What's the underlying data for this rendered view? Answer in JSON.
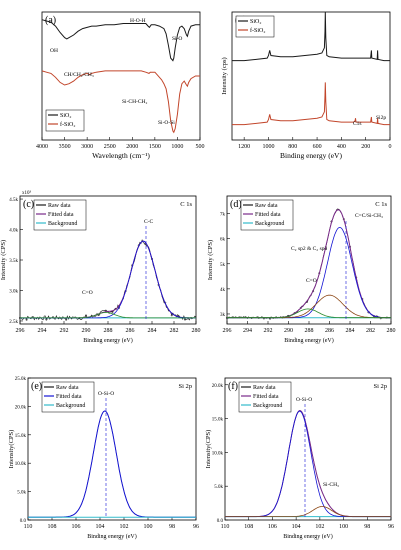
{
  "colors": {
    "black": "#1a1a1a",
    "red": "#c2462b",
    "purple": "#7a2a8a",
    "blue": "#1515d4",
    "green": "#2a8a2a",
    "cyan": "#33bbcc",
    "brown": "#8b4513",
    "axis": "#000000"
  },
  "chart_data": [
    {
      "id": "a",
      "type": "line",
      "panel_label": "(a)",
      "xlabel": "Wavelength (cm⁻¹)",
      "ylabel": "",
      "xlim": [
        4000,
        500
      ],
      "xticks": [
        4000,
        3500,
        3000,
        2500,
        2000,
        1500,
        1000,
        500
      ],
      "show_y_ticks": false,
      "ylim": [
        0,
        1
      ],
      "legend": {
        "position": "bottom-left",
        "entries": [
          "SiO₂",
          "f-SiO₂"
        ]
      },
      "annotations": [
        "OH",
        "H-O-H",
        "Si-O",
        "CH/CH₂/CH₃",
        "Si-CH-CH₂",
        "Si-O-Si"
      ],
      "series": [
        {
          "name": "SiO₂",
          "color": "black",
          "x": [
            4000,
            3900,
            3800,
            3700,
            3600,
            3500,
            3450,
            3400,
            3300,
            3200,
            3100,
            3000,
            2900,
            2800,
            2600,
            2400,
            2200,
            2000,
            1800,
            1700,
            1650,
            1620,
            1580,
            1500,
            1400,
            1300,
            1250,
            1200,
            1150,
            1100,
            1080,
            1050,
            1000,
            950,
            900,
            850,
            800,
            780,
            750,
            700,
            600,
            500
          ],
          "y": [
            0.94,
            0.93,
            0.92,
            0.89,
            0.84,
            0.8,
            0.79,
            0.8,
            0.82,
            0.85,
            0.87,
            0.88,
            0.89,
            0.89,
            0.9,
            0.9,
            0.91,
            0.91,
            0.91,
            0.91,
            0.89,
            0.88,
            0.9,
            0.9,
            0.89,
            0.87,
            0.83,
            0.74,
            0.64,
            0.62,
            0.64,
            0.72,
            0.82,
            0.88,
            0.89,
            0.87,
            0.82,
            0.81,
            0.85,
            0.89,
            0.9,
            0.9
          ]
        },
        {
          "name": "f-SiO₂",
          "color": "red",
          "x": [
            4000,
            3900,
            3800,
            3700,
            3600,
            3500,
            3400,
            3300,
            3200,
            3100,
            3000,
            2950,
            2900,
            2800,
            2600,
            2400,
            2200,
            2000,
            1800,
            1700,
            1630,
            1600,
            1500,
            1450,
            1400,
            1350,
            1300,
            1250,
            1200,
            1150,
            1100,
            1080,
            1050,
            1000,
            950,
            900,
            850,
            800,
            780,
            750,
            700,
            600,
            500
          ],
          "y": [
            0.54,
            0.53,
            0.52,
            0.49,
            0.45,
            0.43,
            0.44,
            0.46,
            0.49,
            0.51,
            0.52,
            0.51,
            0.52,
            0.53,
            0.54,
            0.54,
            0.54,
            0.54,
            0.54,
            0.53,
            0.52,
            0.53,
            0.53,
            0.51,
            0.49,
            0.47,
            0.44,
            0.4,
            0.3,
            0.15,
            0.07,
            0.06,
            0.09,
            0.2,
            0.36,
            0.44,
            0.46,
            0.43,
            0.42,
            0.45,
            0.48,
            0.5,
            0.5
          ]
        }
      ]
    },
    {
      "id": "b",
      "type": "line",
      "panel_label": "(b)",
      "xlabel": "Binding energy (eV)",
      "ylabel": "Intensity (cps)",
      "xlim": [
        1300,
        0
      ],
      "xticks": [
        1200,
        1000,
        800,
        600,
        400,
        200,
        0
      ],
      "show_y_ticks": false,
      "ylim": [
        0,
        1
      ],
      "legend": {
        "position": "top-left",
        "entries": [
          "SiO₂",
          "f-SiO₂"
        ]
      },
      "annotations": [
        "C1s",
        "Si2p"
      ],
      "series": [
        {
          "name": "SiO₂",
          "color": "black",
          "x": [
            1300,
            1200,
            1100,
            1010,
            1000,
            990,
            980,
            900,
            800,
            700,
            600,
            560,
            540,
            535,
            532,
            528,
            520,
            500,
            400,
            300,
            250,
            200,
            160,
            153,
            150,
            105,
            102,
            99,
            50,
            0
          ],
          "y": [
            0.62,
            0.62,
            0.63,
            0.64,
            0.66,
            0.7,
            0.66,
            0.65,
            0.65,
            0.66,
            0.67,
            0.68,
            0.72,
            0.85,
            1.0,
            0.8,
            0.66,
            0.65,
            0.64,
            0.64,
            0.64,
            0.64,
            0.64,
            0.7,
            0.64,
            0.63,
            0.7,
            0.63,
            0.62,
            0.62
          ]
        },
        {
          "name": "f-SiO₂",
          "color": "red",
          "x": [
            1300,
            1200,
            1100,
            1010,
            1000,
            990,
            980,
            900,
            800,
            700,
            600,
            560,
            540,
            535,
            532,
            528,
            520,
            500,
            400,
            300,
            287,
            284,
            280,
            250,
            200,
            160,
            153,
            150,
            105,
            102,
            99,
            50,
            0
          ],
          "y": [
            0.12,
            0.12,
            0.13,
            0.14,
            0.16,
            0.2,
            0.16,
            0.15,
            0.15,
            0.16,
            0.17,
            0.18,
            0.22,
            0.35,
            0.45,
            0.3,
            0.16,
            0.15,
            0.14,
            0.14,
            0.15,
            0.17,
            0.14,
            0.14,
            0.14,
            0.14,
            0.18,
            0.14,
            0.13,
            0.17,
            0.13,
            0.12,
            0.12
          ]
        }
      ]
    },
    {
      "id": "c",
      "type": "line",
      "panel_label": "(c)",
      "corner_label": "C 1s",
      "xlabel": "Binding energy (eV)",
      "ylabel": "Intensity (CPS)",
      "ylabel_multiplier": "x10³",
      "xlim": [
        296,
        280
      ],
      "xticks": [
        296,
        294,
        292,
        290,
        288,
        286,
        284,
        282,
        280
      ],
      "ylim": [
        2.45,
        4.55
      ],
      "yticks": [
        2.5,
        3.0,
        3.5,
        4.0,
        4.5
      ],
      "ytick_labels": [
        "2.5k",
        "3.0k",
        "3.5k",
        "4.0k",
        "4.5k"
      ],
      "legend": {
        "position": "top-left",
        "entries": [
          "Raw data",
          "Fitted data",
          "Background"
        ]
      },
      "annotations": [
        "C-C",
        "C=O"
      ],
      "series": [
        {
          "name": "Raw data",
          "color": "black",
          "role": "raw",
          "noise": 0.035,
          "peaks": [
            [
              284.8,
              1.26,
              1.1
            ],
            [
              288.2,
              0.09,
              0.8
            ]
          ],
          "baseline": 2.55
        },
        {
          "name": "Fitted data",
          "color": "purple",
          "role": "fit",
          "peaks": [
            [
              284.8,
              1.26,
              1.1
            ],
            [
              288.2,
              0.09,
              0.8
            ]
          ],
          "baseline": 2.55
        },
        {
          "name": "Background",
          "color": "cyan",
          "role": "bg",
          "baseline": 2.55
        },
        {
          "name": "C-C",
          "color": "blue",
          "role": "comp",
          "peaks": [
            [
              284.8,
              1.26,
              1.1
            ]
          ],
          "baseline": 2.55
        },
        {
          "name": "C=O",
          "color": "green",
          "role": "comp",
          "peaks": [
            [
              288.2,
              0.09,
              0.8
            ]
          ],
          "baseline": 2.55
        }
      ]
    },
    {
      "id": "d",
      "type": "line",
      "panel_label": "(d)",
      "corner_label": "C 1s",
      "xlabel": "Binding energy (eV)",
      "ylabel": "Intensity (CPS)",
      "xlim": [
        296,
        280
      ],
      "xticks": [
        296,
        294,
        292,
        290,
        288,
        286,
        284,
        282,
        280
      ],
      "ylim": [
        2.6,
        7.7
      ],
      "yticks": [
        3,
        4,
        5,
        6,
        7
      ],
      "ytick_labels": [
        "3k",
        "4k",
        "5k",
        "6k",
        "7k"
      ],
      "legend": {
        "position": "top-left",
        "entries": [
          "Raw data",
          "Fitted data",
          "Background"
        ]
      },
      "annotations": [
        "C=C/Si-CH₃",
        "C₂ sp2 & C₂ sp3",
        "C=O"
      ],
      "series": [
        {
          "name": "Raw data",
          "color": "black",
          "role": "raw",
          "noise": 0.04,
          "peaks": [
            [
              285.0,
              3.6,
              1.2
            ],
            [
              286.0,
              0.9,
              1.3
            ],
            [
              288.1,
              0.35,
              1.0
            ]
          ],
          "baseline": 2.85
        },
        {
          "name": "Fitted data",
          "color": "purple",
          "role": "fit",
          "peaks": [
            [
              285.0,
              3.6,
              1.2
            ],
            [
              286.0,
              0.9,
              1.3
            ],
            [
              288.1,
              0.35,
              1.0
            ]
          ],
          "baseline": 2.85
        },
        {
          "name": "Background",
          "color": "cyan",
          "role": "bg",
          "baseline": 2.85
        },
        {
          "name": "C=C/Si-CH₃",
          "color": "blue",
          "role": "comp",
          "peaks": [
            [
              285.0,
              3.6,
              1.2
            ]
          ],
          "baseline": 2.85
        },
        {
          "name": "C₂ sp2 & C₂ sp3",
          "color": "brown",
          "role": "comp",
          "peaks": [
            [
              286.0,
              0.9,
              1.3
            ]
          ],
          "baseline": 2.85
        },
        {
          "name": "C=O",
          "color": "green",
          "role": "comp",
          "peaks": [
            [
              288.1,
              0.35,
              1.0
            ]
          ],
          "baseline": 2.85
        }
      ]
    },
    {
      "id": "e",
      "type": "line",
      "panel_label": "(e)",
      "corner_label": "Si 2p",
      "xlabel": "Binding energy (eV)",
      "ylabel": "Intensity(CPS)",
      "xlim": [
        110,
        96
      ],
      "xticks": [
        110,
        108,
        106,
        104,
        102,
        100,
        98,
        96
      ],
      "ylim": [
        0,
        25000
      ],
      "yticks": [
        0,
        5000,
        10000,
        15000,
        20000,
        25000
      ],
      "ytick_labels": [
        "0.0",
        "5.0k",
        "10.0k",
        "15.0k",
        "20.0k",
        "25.0k"
      ],
      "legend": {
        "position": "top-left",
        "entries": [
          "Raw data",
          "Fitted data",
          "Background"
        ]
      },
      "annotations": [
        "O-Si-O"
      ],
      "series": [
        {
          "name": "Raw data",
          "color": "black",
          "role": "raw",
          "noise": 0,
          "peaks": [
            [
              103.6,
              18700,
              0.95
            ]
          ],
          "baseline": 500
        },
        {
          "name": "Fitted data",
          "color": "blue",
          "role": "fit",
          "peaks": [
            [
              103.6,
              18700,
              0.95
            ]
          ],
          "baseline": 500
        },
        {
          "name": "Background",
          "color": "cyan",
          "role": "bg",
          "baseline": 500
        }
      ]
    },
    {
      "id": "f",
      "type": "line",
      "panel_label": "(f)",
      "corner_label": "Si 2p",
      "xlabel": "Binding energy (eV)",
      "ylabel": "Intensity(CPS)",
      "xlim": [
        110,
        96
      ],
      "xticks": [
        110,
        108,
        106,
        104,
        102,
        100,
        98,
        96
      ],
      "ylim": [
        0,
        21000
      ],
      "yticks": [
        0,
        5000,
        10000,
        15000,
        20000
      ],
      "ytick_labels": [
        "0.0",
        "5.0k",
        "10.0k",
        "15.0k",
        "20.0k"
      ],
      "legend": {
        "position": "top-left",
        "entries": [
          "Raw data",
          "Fitted data",
          "Background"
        ]
      },
      "annotations": [
        "O-Si-O",
        "Si-CH₃"
      ],
      "series": [
        {
          "name": "Raw data",
          "color": "black",
          "role": "raw",
          "noise": 0,
          "peaks": [
            [
              103.7,
              15600,
              0.95
            ],
            [
              101.8,
              1500,
              0.8
            ]
          ],
          "baseline": 500
        },
        {
          "name": "Fitted data",
          "color": "purple",
          "role": "fit",
          "peaks": [
            [
              103.7,
              15600,
              0.95
            ],
            [
              101.8,
              1500,
              0.8
            ]
          ],
          "baseline": 500
        },
        {
          "name": "Background",
          "color": "cyan",
          "role": "bg",
          "baseline": 500
        },
        {
          "name": "O-Si-O",
          "color": "blue",
          "role": "comp",
          "peaks": [
            [
              103.7,
              15600,
              0.95
            ]
          ],
          "baseline": 500
        },
        {
          "name": "Si-CH₃",
          "color": "brown",
          "role": "comp",
          "peaks": [
            [
              101.8,
              1500,
              0.8
            ]
          ],
          "baseline": 500
        }
      ]
    }
  ]
}
